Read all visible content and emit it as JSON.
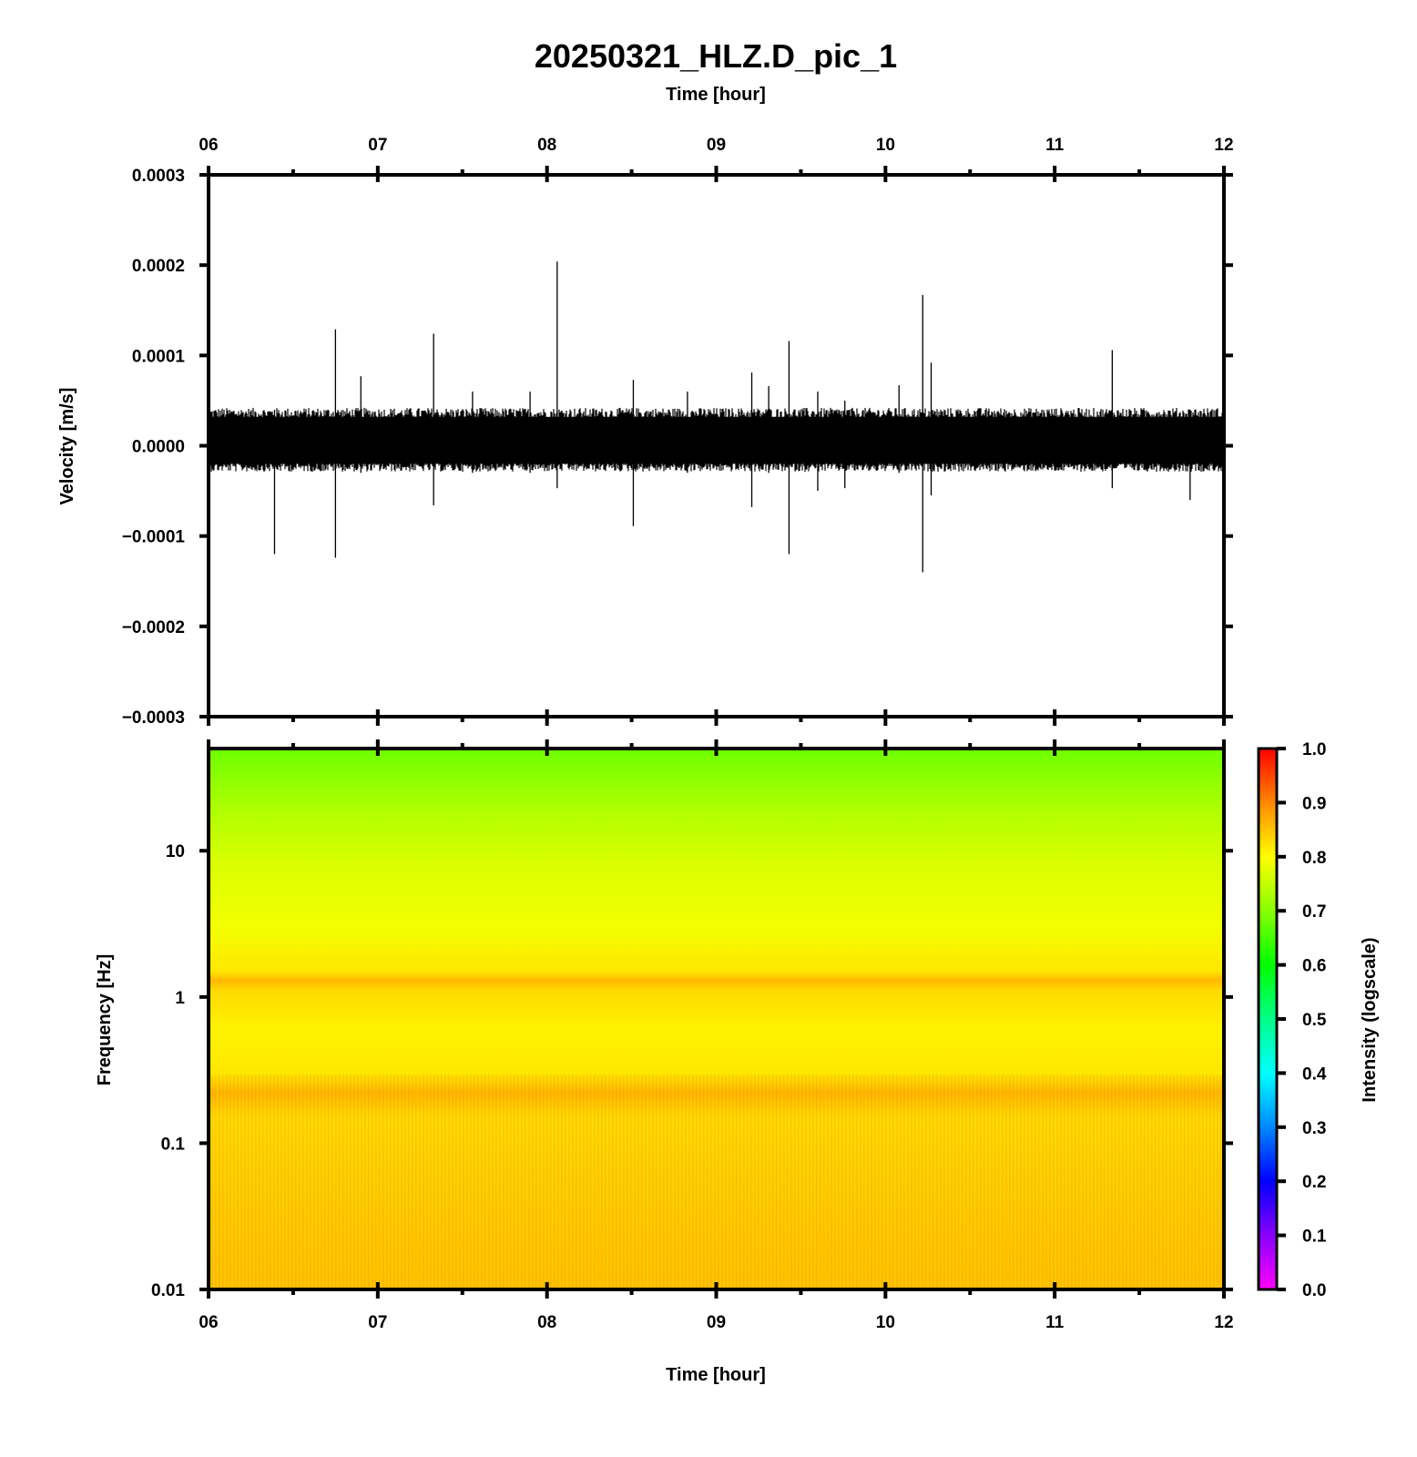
{
  "title": "20250321_HLZ.D_pic_1",
  "colors": {
    "waveform": "#000000",
    "colormap": [
      "#ff00ff",
      "#8800ff",
      "#0000ff",
      "#0088ff",
      "#00ffff",
      "#00ff88",
      "#00ff00",
      "#88ff00",
      "#ffff00",
      "#ff8800",
      "#ff0000"
    ]
  },
  "chart_data": [
    {
      "type": "line",
      "name": "waveform",
      "xlabel_top": "Time [hour]",
      "ylabel": "Velocity [m/s]",
      "xlim": [
        6,
        12
      ],
      "ylim": [
        -0.0003,
        0.0003
      ],
      "x_ticks": [
        "06",
        "07",
        "08",
        "09",
        "10",
        "11",
        "12"
      ],
      "y_ticks": [
        "0.0003",
        "0.0002",
        "0.0001",
        "0.0000",
        "−0.0001",
        "−0.0002",
        "−0.0003"
      ],
      "noise_band": [
        -2.5e-05,
        4e-05
      ],
      "spikes": [
        {
          "t": 6.39,
          "min": -0.00012,
          "max": 4e-05
        },
        {
          "t": 6.75,
          "min": -0.000124,
          "max": 0.000129
        },
        {
          "t": 6.9,
          "min": -3e-05,
          "max": 7.7e-05
        },
        {
          "t": 7.33,
          "min": -6.6e-05,
          "max": 0.000124
        },
        {
          "t": 7.56,
          "min": -3e-05,
          "max": 6e-05
        },
        {
          "t": 7.9,
          "min": -3e-05,
          "max": 6e-05
        },
        {
          "t": 8.06,
          "min": -4.7e-05,
          "max": 0.000204
        },
        {
          "t": 8.51,
          "min": -8.9e-05,
          "max": 7.3e-05
        },
        {
          "t": 8.83,
          "min": -3e-05,
          "max": 6e-05
        },
        {
          "t": 9.21,
          "min": -6.8e-05,
          "max": 8.1e-05
        },
        {
          "t": 9.31,
          "min": -3e-05,
          "max": 6.6e-05
        },
        {
          "t": 9.43,
          "min": -0.00012,
          "max": 0.000116
        },
        {
          "t": 9.6,
          "min": -5e-05,
          "max": 6e-05
        },
        {
          "t": 9.76,
          "min": -4.7e-05,
          "max": 5e-05
        },
        {
          "t": 10.08,
          "min": -3e-05,
          "max": 6.7e-05
        },
        {
          "t": 10.22,
          "min": -0.00014,
          "max": 0.000167
        },
        {
          "t": 10.27,
          "min": -5.5e-05,
          "max": 9.2e-05
        },
        {
          "t": 11.34,
          "min": -4.7e-05,
          "max": 0.000106
        },
        {
          "t": 11.8,
          "min": -6e-05,
          "max": 4e-05
        }
      ]
    },
    {
      "type": "heatmap",
      "name": "spectrogram",
      "xlabel": "Time [hour]",
      "ylabel": "Frequency [Hz]",
      "xlim": [
        6,
        12
      ],
      "ylim": [
        0.01,
        50
      ],
      "y_scale": "log",
      "x_ticks": [
        "06",
        "07",
        "08",
        "09",
        "10",
        "11",
        "12"
      ],
      "y_ticks": [
        {
          "value": 10,
          "label": "10"
        },
        {
          "value": 1,
          "label": "1"
        },
        {
          "value": 0.1,
          "label": "0.1"
        },
        {
          "value": 0.01,
          "label": "0.01"
        }
      ],
      "intensity_profile": [
        {
          "freq": 50,
          "intensity": 0.68
        },
        {
          "freq": 20,
          "intensity": 0.73
        },
        {
          "freq": 8,
          "intensity": 0.77
        },
        {
          "freq": 3,
          "intensity": 0.79
        },
        {
          "freq": 1.5,
          "intensity": 0.82
        },
        {
          "freq": 1.3,
          "intensity": 0.86
        },
        {
          "freq": 1.1,
          "intensity": 0.83
        },
        {
          "freq": 0.6,
          "intensity": 0.81
        },
        {
          "freq": 0.3,
          "intensity": 0.82
        },
        {
          "freq": 0.22,
          "intensity": 0.86
        },
        {
          "freq": 0.15,
          "intensity": 0.83
        },
        {
          "freq": 0.05,
          "intensity": 0.84
        },
        {
          "freq": 0.01,
          "intensity": 0.85
        }
      ],
      "colorbar": {
        "label": "Intensity (logscale)",
        "range": [
          0,
          1
        ],
        "ticks": [
          "0.0",
          "0.1",
          "0.2",
          "0.3",
          "0.4",
          "0.5",
          "0.6",
          "0.7",
          "0.8",
          "0.9",
          "1.0"
        ]
      }
    }
  ]
}
